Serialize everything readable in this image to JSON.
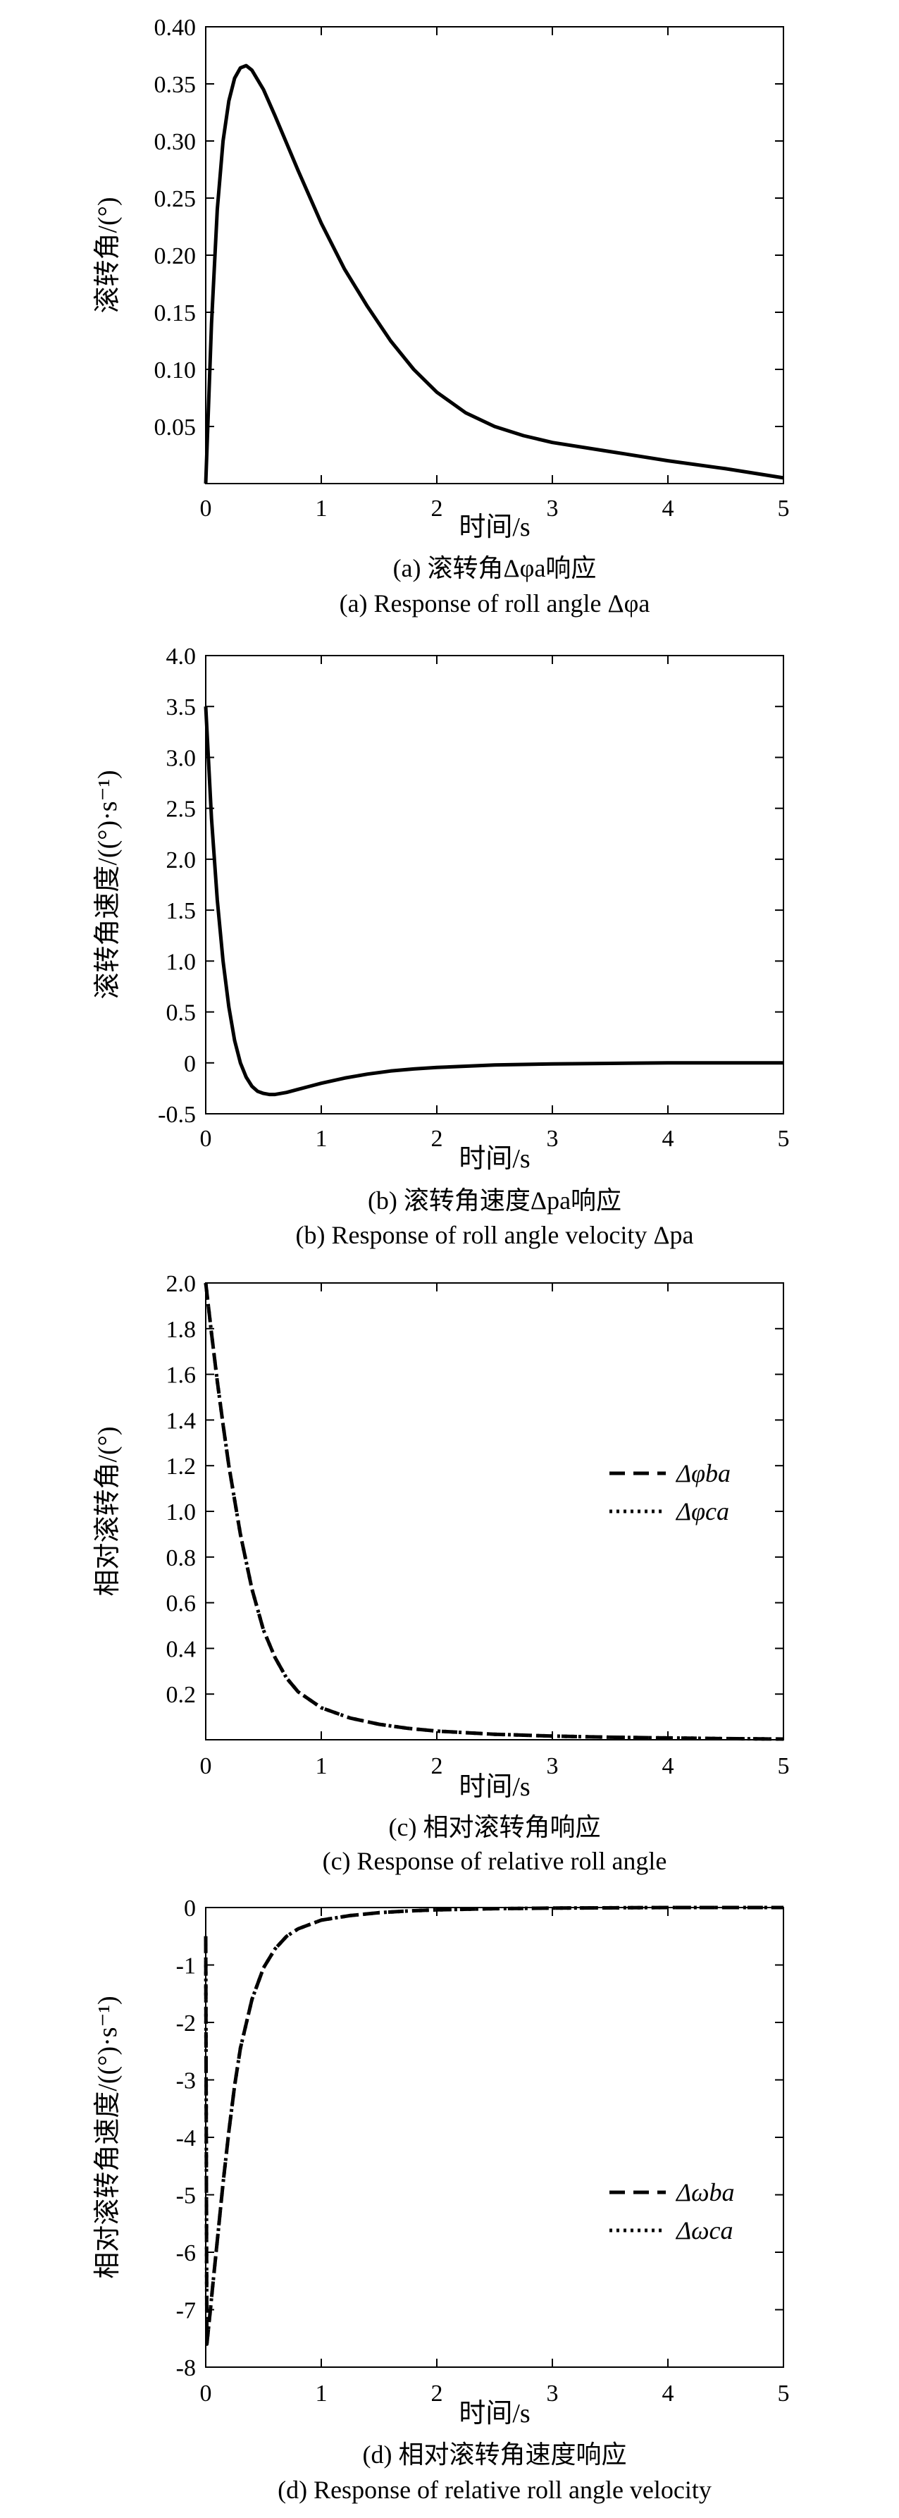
{
  "chart_data": [
    {
      "type": "line",
      "panel": "a",
      "xlabel": "时间/s",
      "ylabel": "滚转角/(°)",
      "caption_cn": "(a) 滚转角Δφa响应",
      "caption_en": "(a) Response of roll angle Δφa",
      "xlim": [
        0,
        5
      ],
      "ylim": [
        0,
        0.4
      ],
      "xticks": [
        "0",
        "1",
        "2",
        "3",
        "4",
        "5"
      ],
      "yticks": [
        "0.05",
        "0.10",
        "0.15",
        "0.20",
        "0.25",
        "0.30",
        "0.35",
        "0.40"
      ],
      "grid": false,
      "series": [
        {
          "style": "solid",
          "x": [
            0,
            0.05,
            0.1,
            0.15,
            0.2,
            0.25,
            0.3,
            0.35,
            0.4,
            0.5,
            0.6,
            0.7,
            0.8,
            1.0,
            1.2,
            1.4,
            1.6,
            1.8,
            2.0,
            2.25,
            2.5,
            2.75,
            3.0,
            3.5,
            4.0,
            4.5,
            5.0
          ],
          "y": [
            0,
            0.14,
            0.24,
            0.3,
            0.335,
            0.355,
            0.364,
            0.366,
            0.362,
            0.345,
            0.322,
            0.298,
            0.274,
            0.228,
            0.188,
            0.155,
            0.125,
            0.1,
            0.08,
            0.062,
            0.05,
            0.042,
            0.036,
            0.028,
            0.02,
            0.013,
            0.005
          ]
        }
      ]
    },
    {
      "type": "line",
      "panel": "b",
      "xlabel": "时间/s",
      "ylabel": "滚转角速度/((°)·s⁻¹)",
      "caption_cn": "(b) 滚转角速度Δpa响应",
      "caption_en": "(b) Response of roll angle velocity Δpa",
      "xlim": [
        0,
        5
      ],
      "ylim": [
        -0.5,
        4.0
      ],
      "xticks": [
        "0",
        "1",
        "2",
        "3",
        "4",
        "5"
      ],
      "yticks": [
        "-0.5",
        "0",
        "0.5",
        "1.0",
        "1.5",
        "2.0",
        "2.5",
        "3.0",
        "3.5",
        "4.0"
      ],
      "grid": false,
      "series": [
        {
          "style": "solid",
          "x": [
            0,
            0.05,
            0.1,
            0.15,
            0.2,
            0.25,
            0.3,
            0.35,
            0.4,
            0.45,
            0.5,
            0.55,
            0.6,
            0.7,
            0.8,
            0.9,
            1.0,
            1.2,
            1.4,
            1.6,
            1.8,
            2.0,
            2.5,
            3.0,
            3.5,
            4.0,
            4.5,
            5.0
          ],
          "y": [
            3.5,
            2.4,
            1.6,
            1.0,
            0.55,
            0.22,
            0.0,
            -0.14,
            -0.23,
            -0.28,
            -0.3,
            -0.31,
            -0.31,
            -0.29,
            -0.26,
            -0.23,
            -0.2,
            -0.15,
            -0.11,
            -0.08,
            -0.06,
            -0.045,
            -0.02,
            -0.01,
            -0.005,
            0.0,
            0.0,
            0.0
          ]
        }
      ]
    },
    {
      "type": "line",
      "panel": "c",
      "xlabel": "时间/s",
      "ylabel": "相对滚转角/(°)",
      "caption_cn": "(c) 相对滚转角响应",
      "caption_en": "(c) Response of relative roll angle",
      "xlim": [
        0,
        5
      ],
      "ylim": [
        0,
        2.0
      ],
      "xticks": [
        "0",
        "1",
        "2",
        "3",
        "4",
        "5"
      ],
      "yticks": [
        "0.2",
        "0.4",
        "0.6",
        "0.8",
        "1.0",
        "1.2",
        "1.4",
        "1.6",
        "1.8",
        "2.0"
      ],
      "grid": false,
      "legend_position": "center-right",
      "series": [
        {
          "name": "Δφba",
          "style": "dashed",
          "x": [
            0,
            0.05,
            0.1,
            0.15,
            0.2,
            0.3,
            0.4,
            0.5,
            0.6,
            0.7,
            0.8,
            1.0,
            1.25,
            1.5,
            1.75,
            2.0,
            2.5,
            3.0,
            3.5,
            4.0,
            4.5,
            5.0
          ],
          "y": [
            2.0,
            1.78,
            1.57,
            1.38,
            1.2,
            0.9,
            0.66,
            0.48,
            0.36,
            0.27,
            0.21,
            0.14,
            0.095,
            0.068,
            0.05,
            0.038,
            0.024,
            0.016,
            0.011,
            0.008,
            0.005,
            0.003
          ]
        },
        {
          "name": "Δφca",
          "style": "dotted",
          "x": [
            0,
            0.05,
            0.1,
            0.15,
            0.2,
            0.3,
            0.4,
            0.5,
            0.6,
            0.7,
            0.8,
            1.0,
            1.25,
            1.5,
            1.75,
            2.0,
            2.5,
            3.0,
            3.5,
            4.0,
            4.5,
            5.0
          ],
          "y": [
            2.0,
            1.78,
            1.57,
            1.38,
            1.2,
            0.9,
            0.66,
            0.48,
            0.36,
            0.27,
            0.21,
            0.14,
            0.095,
            0.068,
            0.05,
            0.038,
            0.024,
            0.016,
            0.011,
            0.008,
            0.005,
            0.003
          ]
        }
      ]
    },
    {
      "type": "line",
      "panel": "d",
      "xlabel": "时间/s",
      "ylabel": "相对滚转角速度/((°)·s⁻¹)",
      "caption_cn": "(d) 相对滚转角速度响应",
      "caption_en": "(d) Response of relative roll angle velocity",
      "xlim": [
        0,
        5
      ],
      "ylim": [
        -8,
        0
      ],
      "xticks": [
        "0",
        "1",
        "2",
        "3",
        "4",
        "5"
      ],
      "yticks": [
        "-8",
        "-7",
        "-6",
        "-5",
        "-4",
        "-3",
        "-2",
        "-1",
        "0"
      ],
      "grid": false,
      "legend_position": "lower-right",
      "series": [
        {
          "name": "Δωba",
          "style": "dashed",
          "x": [
            0,
            0.01,
            0.02,
            0.04,
            0.06,
            0.08,
            0.1,
            0.15,
            0.2,
            0.25,
            0.3,
            0.4,
            0.5,
            0.6,
            0.7,
            0.8,
            1.0,
            1.25,
            1.5,
            1.75,
            2.0,
            2.5,
            3.0,
            4.0,
            5.0
          ],
          "y": [
            -0.5,
            -7.6,
            -7.4,
            -7.0,
            -6.6,
            -6.2,
            -5.8,
            -4.8,
            -3.9,
            -3.1,
            -2.45,
            -1.6,
            -1.05,
            -0.72,
            -0.5,
            -0.37,
            -0.22,
            -0.14,
            -0.09,
            -0.06,
            -0.04,
            -0.02,
            -0.01,
            0.0,
            0.0
          ]
        },
        {
          "name": "Δωca",
          "style": "dotted",
          "x": [
            0,
            0.01,
            0.02,
            0.04,
            0.06,
            0.08,
            0.1,
            0.15,
            0.2,
            0.25,
            0.3,
            0.4,
            0.5,
            0.6,
            0.7,
            0.8,
            1.0,
            1.25,
            1.5,
            1.75,
            2.0,
            2.5,
            3.0,
            4.0,
            5.0
          ],
          "y": [
            -0.5,
            -7.6,
            -7.4,
            -7.0,
            -6.6,
            -6.2,
            -5.8,
            -4.8,
            -3.9,
            -3.1,
            -2.45,
            -1.6,
            -1.05,
            -0.72,
            -0.5,
            -0.37,
            -0.22,
            -0.14,
            -0.09,
            -0.06,
            -0.04,
            -0.02,
            -0.01,
            0.0,
            0.0
          ]
        }
      ]
    }
  ]
}
